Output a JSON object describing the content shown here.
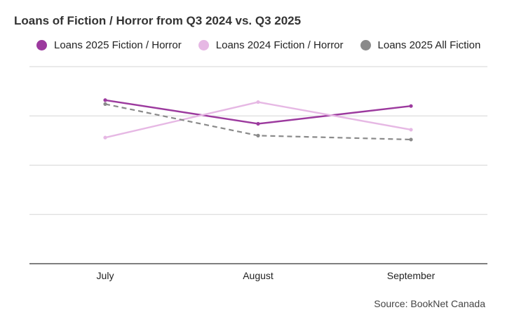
{
  "chart_data": {
    "type": "line",
    "title": "Loans of Fiction / Horror from Q3 2024 vs. Q3 2025",
    "categories": [
      "July",
      "August",
      "September"
    ],
    "ylim": [
      0,
      100
    ],
    "grid": true,
    "legend_position": "top-left",
    "series": [
      {
        "name": "Loans 2025 Fiction / Horror",
        "values": [
          83,
          71,
          80
        ],
        "color": "#9c3a9e",
        "style": "solid"
      },
      {
        "name": "Loans 2024 Fiction / Horror",
        "values": [
          64,
          82,
          68
        ],
        "color": "#e6b8e4",
        "style": "solid"
      },
      {
        "name": "Loans 2025 All Fiction",
        "values": [
          81,
          65,
          63
        ],
        "color": "#8a8a8a",
        "style": "dashed"
      }
    ]
  },
  "source": "Source: BookNet Canada"
}
